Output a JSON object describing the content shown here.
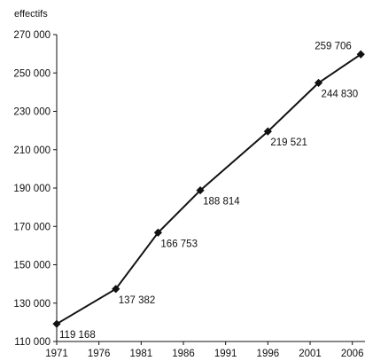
{
  "chart_data": {
    "type": "line",
    "unit_label": "effectifs",
    "x": [
      1971,
      1978,
      1983,
      1988,
      1996,
      2002,
      2007
    ],
    "values": [
      119168,
      137382,
      166753,
      188814,
      219521,
      244830,
      259706
    ],
    "point_labels": [
      "119 168",
      "137 382",
      "166 753",
      "188 814",
      "219 521",
      "244 830",
      "259 706"
    ],
    "x_ticks": [
      1971,
      1976,
      1981,
      1986,
      1991,
      1996,
      2001,
      2006
    ],
    "x_tick_labels": [
      "1971",
      "1976",
      "1981",
      "1986",
      "1991",
      "1996",
      "2001",
      "2006"
    ],
    "y_ticks": [
      110000,
      130000,
      150000,
      170000,
      190000,
      210000,
      230000,
      250000,
      270000
    ],
    "y_tick_labels": [
      "110 000",
      "130 000",
      "150 000",
      "170 000",
      "190 000",
      "210 000",
      "230 000",
      "250 000",
      "270 000"
    ],
    "xlim": [
      1971,
      2007.5
    ],
    "ylim": [
      110000,
      270000
    ],
    "grid": false,
    "legend": "none",
    "line_color": "#111111",
    "marker": "diamond"
  }
}
